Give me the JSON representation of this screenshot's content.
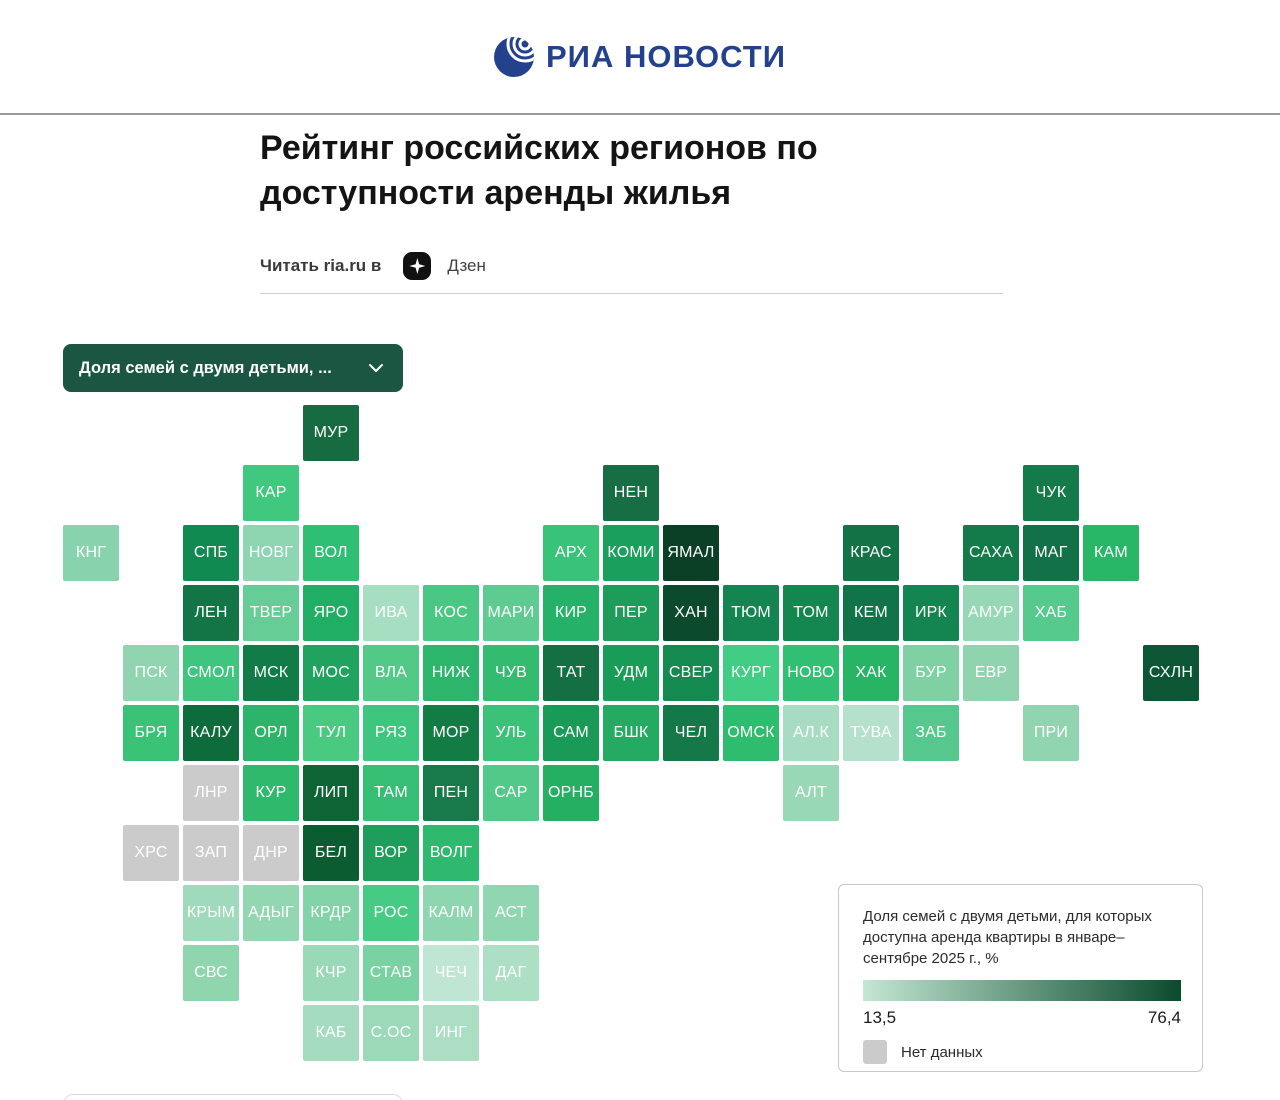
{
  "header": {
    "brand": "РИА НОВОСТИ",
    "brand_color": "#24418d"
  },
  "article": {
    "title": "Рейтинг российских регионов по доступности аренды жилья"
  },
  "read_row": {
    "prefix": "Читать ria.ru в",
    "platform": "Дзен"
  },
  "dropdown": {
    "label": "Доля семей с двумя детьми, ...",
    "bg": "#1a5641"
  },
  "chart_data": {
    "type": "heatmap",
    "subtype": "tile-cartogram-russia",
    "title": "Доля семей с двумя детьми, для которых доступна аренда квартиры в январе–сентябре 2025 г., %",
    "legend": {
      "min": "13,5",
      "max": "76,4",
      "gradient_from": "#c3e7d4",
      "gradient_to": "#0b4a2d",
      "no_data_label": "Нет данных",
      "no_data_color": "#cbcbcb",
      "position": "bottom-right"
    },
    "regions": [
      {
        "code": "МУР",
        "row": 0,
        "col": 4,
        "color": "#176b41"
      },
      {
        "code": "КАР",
        "row": 1,
        "col": 3,
        "color": "#41c87f"
      },
      {
        "code": "НЕН",
        "row": 1,
        "col": 9,
        "color": "#176e44"
      },
      {
        "code": "ЧУК",
        "row": 1,
        "col": 16,
        "color": "#157a4a"
      },
      {
        "code": "КНГ",
        "row": 2,
        "col": 0,
        "color": "#88d3ad"
      },
      {
        "code": "СПБ",
        "row": 2,
        "col": 2,
        "color": "#108a51"
      },
      {
        "code": "НОВГ",
        "row": 2,
        "col": 3,
        "color": "#8ed5b2"
      },
      {
        "code": "ВОЛ",
        "row": 2,
        "col": 4,
        "color": "#2fbf72"
      },
      {
        "code": "АРХ",
        "row": 2,
        "col": 8,
        "color": "#38c379"
      },
      {
        "code": "КОМИ",
        "row": 2,
        "col": 9,
        "color": "#1b9f5d"
      },
      {
        "code": "ЯМАЛ",
        "row": 2,
        "col": 10,
        "color": "#0b4026"
      },
      {
        "code": "КРАС",
        "row": 2,
        "col": 13,
        "color": "#137347"
      },
      {
        "code": "САХА",
        "row": 2,
        "col": 15,
        "color": "#137b4a"
      },
      {
        "code": "МАГ",
        "row": 2,
        "col": 16,
        "color": "#127147"
      },
      {
        "code": "КАМ",
        "row": 2,
        "col": 17,
        "color": "#27b766"
      },
      {
        "code": "ЛЕН",
        "row": 3,
        "col": 2,
        "color": "#137445"
      },
      {
        "code": "ТВЕР",
        "row": 3,
        "col": 3,
        "color": "#65cd95"
      },
      {
        "code": "ЯРО",
        "row": 3,
        "col": 4,
        "color": "#1fae63"
      },
      {
        "code": "ИВА",
        "row": 3,
        "col": 5,
        "color": "#a6dec2"
      },
      {
        "code": "КОС",
        "row": 3,
        "col": 6,
        "color": "#4ac883"
      },
      {
        "code": "МАРИ",
        "row": 3,
        "col": 7,
        "color": "#5ecb90"
      },
      {
        "code": "КИР",
        "row": 3,
        "col": 8,
        "color": "#25b167"
      },
      {
        "code": "ПЕР",
        "row": 3,
        "col": 9,
        "color": "#1d9c5a"
      },
      {
        "code": "ХАН",
        "row": 3,
        "col": 10,
        "color": "#0c4a2e"
      },
      {
        "code": "ТЮМ",
        "row": 3,
        "col": 11,
        "color": "#148550"
      },
      {
        "code": "ТОМ",
        "row": 3,
        "col": 12,
        "color": "#14864f"
      },
      {
        "code": "КЕМ",
        "row": 3,
        "col": 13,
        "color": "#107448"
      },
      {
        "code": "ИРК",
        "row": 3,
        "col": 14,
        "color": "#148550"
      },
      {
        "code": "АМУР",
        "row": 3,
        "col": 15,
        "color": "#96d7b5"
      },
      {
        "code": "ХАБ",
        "row": 3,
        "col": 16,
        "color": "#56ca8c"
      },
      {
        "code": "ПСК",
        "row": 4,
        "col": 1,
        "color": "#90d5b0"
      },
      {
        "code": "СМОЛ",
        "row": 4,
        "col": 2,
        "color": "#3fc57e"
      },
      {
        "code": "МСК",
        "row": 4,
        "col": 3,
        "color": "#117c48"
      },
      {
        "code": "МОС",
        "row": 4,
        "col": 4,
        "color": "#1fa35e"
      },
      {
        "code": "ВЛА",
        "row": 4,
        "col": 5,
        "color": "#52c987"
      },
      {
        "code": "НИЖ",
        "row": 4,
        "col": 6,
        "color": "#2db56c"
      },
      {
        "code": "ЧУВ",
        "row": 4,
        "col": 7,
        "color": "#33bb70"
      },
      {
        "code": "ТАТ",
        "row": 4,
        "col": 8,
        "color": "#147043"
      },
      {
        "code": "УДМ",
        "row": 4,
        "col": 9,
        "color": "#189c58"
      },
      {
        "code": "СВЕР",
        "row": 4,
        "col": 10,
        "color": "#148950"
      },
      {
        "code": "КУРГ",
        "row": 4,
        "col": 11,
        "color": "#42cd84"
      },
      {
        "code": "НОВО",
        "row": 4,
        "col": 12,
        "color": "#31bf74"
      },
      {
        "code": "ХАК",
        "row": 4,
        "col": 13,
        "color": "#27b565"
      },
      {
        "code": "БУР",
        "row": 4,
        "col": 14,
        "color": "#7fd1a4"
      },
      {
        "code": "ЕВР",
        "row": 4,
        "col": 15,
        "color": "#90d4af"
      },
      {
        "code": "СХЛН",
        "row": 4,
        "col": 18,
        "color": "#0c5636"
      },
      {
        "code": "БРЯ",
        "row": 5,
        "col": 1,
        "color": "#3ac377"
      },
      {
        "code": "КАЛУ",
        "row": 5,
        "col": 2,
        "color": "#0e6b3b"
      },
      {
        "code": "ОРЛ",
        "row": 5,
        "col": 3,
        "color": "#2db46b"
      },
      {
        "code": "ТУЛ",
        "row": 5,
        "col": 4,
        "color": "#4ac981"
      },
      {
        "code": "РЯЗ",
        "row": 5,
        "col": 5,
        "color": "#3fc67e"
      },
      {
        "code": "МОР",
        "row": 5,
        "col": 6,
        "color": "#137c45"
      },
      {
        "code": "УЛЬ",
        "row": 5,
        "col": 7,
        "color": "#3cc278"
      },
      {
        "code": "САМ",
        "row": 5,
        "col": 8,
        "color": "#199b57"
      },
      {
        "code": "БШК",
        "row": 5,
        "col": 9,
        "color": "#24aa61"
      },
      {
        "code": "ЧЕЛ",
        "row": 5,
        "col": 10,
        "color": "#147848"
      },
      {
        "code": "ОМСК",
        "row": 5,
        "col": 11,
        "color": "#2ebc6e"
      },
      {
        "code": "АЛ.К",
        "row": 5,
        "col": 12,
        "color": "#a7dcc2"
      },
      {
        "code": "ТУВА",
        "row": 5,
        "col": 13,
        "color": "#b5e0cb"
      },
      {
        "code": "ЗАБ",
        "row": 5,
        "col": 14,
        "color": "#57c88d"
      },
      {
        "code": "ПРИ",
        "row": 5,
        "col": 16,
        "color": "#90d5af"
      },
      {
        "code": "ЛНР",
        "row": 6,
        "col": 2,
        "color": "#cbcbcb",
        "no_data": true
      },
      {
        "code": "КУР",
        "row": 6,
        "col": 3,
        "color": "#2eb96d"
      },
      {
        "code": "ЛИП",
        "row": 6,
        "col": 4,
        "color": "#0e6434"
      },
      {
        "code": "ТАМ",
        "row": 6,
        "col": 5,
        "color": "#36bf74"
      },
      {
        "code": "ПЕН",
        "row": 6,
        "col": 6,
        "color": "#187a4b"
      },
      {
        "code": "САР",
        "row": 6,
        "col": 7,
        "color": "#52c988"
      },
      {
        "code": "ОРНБ",
        "row": 6,
        "col": 8,
        "color": "#25af63"
      },
      {
        "code": "АЛТ",
        "row": 6,
        "col": 12,
        "color": "#98d8b6"
      },
      {
        "code": "ХРС",
        "row": 7,
        "col": 1,
        "color": "#cbcbcb",
        "no_data": true
      },
      {
        "code": "ЗАП",
        "row": 7,
        "col": 2,
        "color": "#cbcbcb",
        "no_data": true
      },
      {
        "code": "ДНР",
        "row": 7,
        "col": 3,
        "color": "#cbcbcb",
        "no_data": true
      },
      {
        "code": "БЕЛ",
        "row": 7,
        "col": 4,
        "color": "#0c5c32"
      },
      {
        "code": "ВОР",
        "row": 7,
        "col": 5,
        "color": "#1f9e5b"
      },
      {
        "code": "ВОЛГ",
        "row": 7,
        "col": 6,
        "color": "#2eb96e"
      },
      {
        "code": "КРЫМ",
        "row": 8,
        "col": 2,
        "color": "#9edabb"
      },
      {
        "code": "АДЫГ",
        "row": 8,
        "col": 3,
        "color": "#92d6b2"
      },
      {
        "code": "КРДР",
        "row": 8,
        "col": 4,
        "color": "#82d3a8"
      },
      {
        "code": "РОС",
        "row": 8,
        "col": 5,
        "color": "#46cb84"
      },
      {
        "code": "КАЛМ",
        "row": 8,
        "col": 6,
        "color": "#8ed6af"
      },
      {
        "code": "АСТ",
        "row": 8,
        "col": 7,
        "color": "#90d7b1"
      },
      {
        "code": "СВС",
        "row": 9,
        "col": 2,
        "color": "#8fd6af"
      },
      {
        "code": "КЧР",
        "row": 9,
        "col": 4,
        "color": "#99d9b7"
      },
      {
        "code": "СТАВ",
        "row": 9,
        "col": 5,
        "color": "#7ad1a2"
      },
      {
        "code": "ЧЕЧ",
        "row": 9,
        "col": 6,
        "color": "#bfe6d2"
      },
      {
        "code": "ДАГ",
        "row": 9,
        "col": 7,
        "color": "#addfc5"
      },
      {
        "code": "КАБ",
        "row": 10,
        "col": 4,
        "color": "#a5dcc0"
      },
      {
        "code": "С.ОС",
        "row": 10,
        "col": 5,
        "color": "#9bd9b8"
      },
      {
        "code": "ИНГ",
        "row": 10,
        "col": 6,
        "color": "#abdec3"
      }
    ]
  }
}
